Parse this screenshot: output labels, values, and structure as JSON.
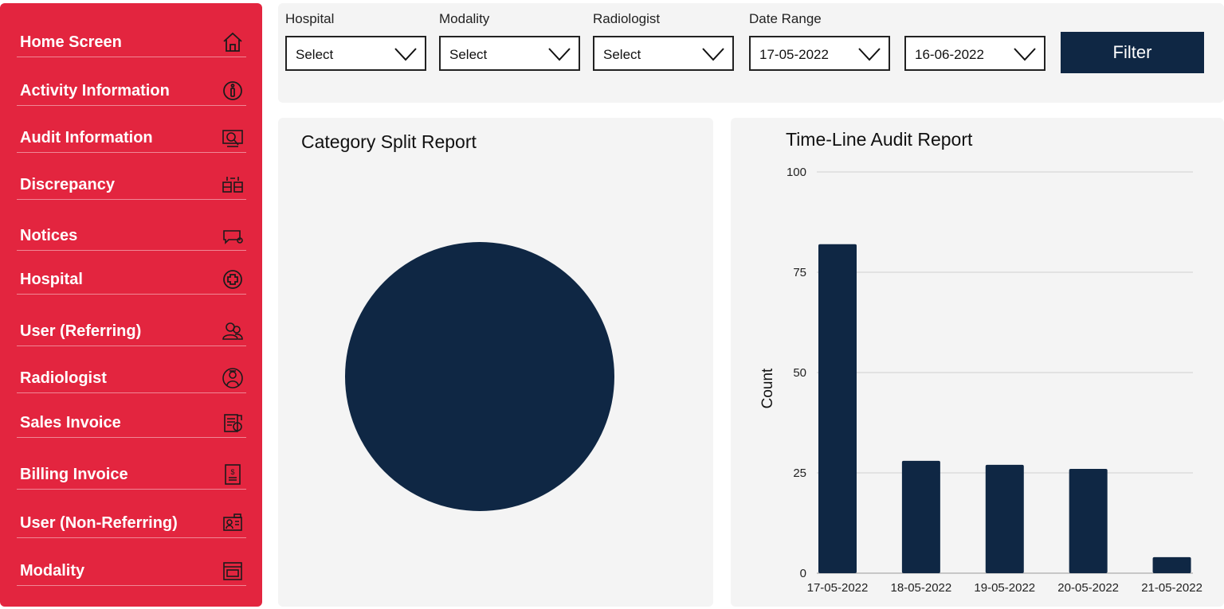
{
  "sidebar": {
    "items": [
      {
        "label": "Home Screen",
        "icon": "home-icon"
      },
      {
        "label": "Activity Information",
        "icon": "info-icon"
      },
      {
        "label": "Audit Information",
        "icon": "audit-icon"
      },
      {
        "label": "Discrepancy",
        "icon": "discrepancy-icon"
      },
      {
        "label": "Notices",
        "icon": "notice-icon"
      },
      {
        "label": "Hospital",
        "icon": "hospital-plus-icon"
      },
      {
        "label": "User (Referring)",
        "icon": "users-icon"
      },
      {
        "label": "Radiologist",
        "icon": "radiologist-icon"
      },
      {
        "label": "Sales Invoice",
        "icon": "sales-invoice-icon"
      },
      {
        "label": "Billing Invoice",
        "icon": "billing-invoice-icon"
      },
      {
        "label": "User (Non-Referring)",
        "icon": "user-card-icon"
      },
      {
        "label": "Modality",
        "icon": "modality-icon"
      }
    ],
    "color": "#e3253f"
  },
  "filters": {
    "hospital": {
      "label": "Hospital",
      "value": "Select"
    },
    "modality": {
      "label": "Modality",
      "value": "Select"
    },
    "radiologist": {
      "label": "Radiologist",
      "value": "Select"
    },
    "date_range": {
      "label": "Date Range",
      "from": "17-05-2022",
      "to": "16-06-2022"
    },
    "filter_button": "Filter"
  },
  "category_panel": {
    "title": "Category Split Report"
  },
  "timeline_panel": {
    "title": "Time-Line Audit Report"
  },
  "chart_data": [
    {
      "type": "pie",
      "title": "Category Split Report",
      "categories": [
        ""
      ],
      "values": [
        100
      ],
      "colors": [
        "#0f2744"
      ]
    },
    {
      "type": "bar",
      "title": "Time-Line Audit Report",
      "categories": [
        "17-05-2022",
        "18-05-2022",
        "19-05-2022",
        "20-05-2022",
        "21-05-2022"
      ],
      "values": [
        82,
        28,
        27,
        26,
        4
      ],
      "xlabel": "",
      "ylabel": "Count",
      "ylim": [
        0,
        100
      ],
      "yticks": [
        0,
        25,
        50,
        75,
        100
      ],
      "grid": true,
      "color": "#0f2744"
    }
  ],
  "colors": {
    "accent": "#0f2744",
    "sidebar": "#e3253f",
    "panel": "#f4f4f4"
  }
}
